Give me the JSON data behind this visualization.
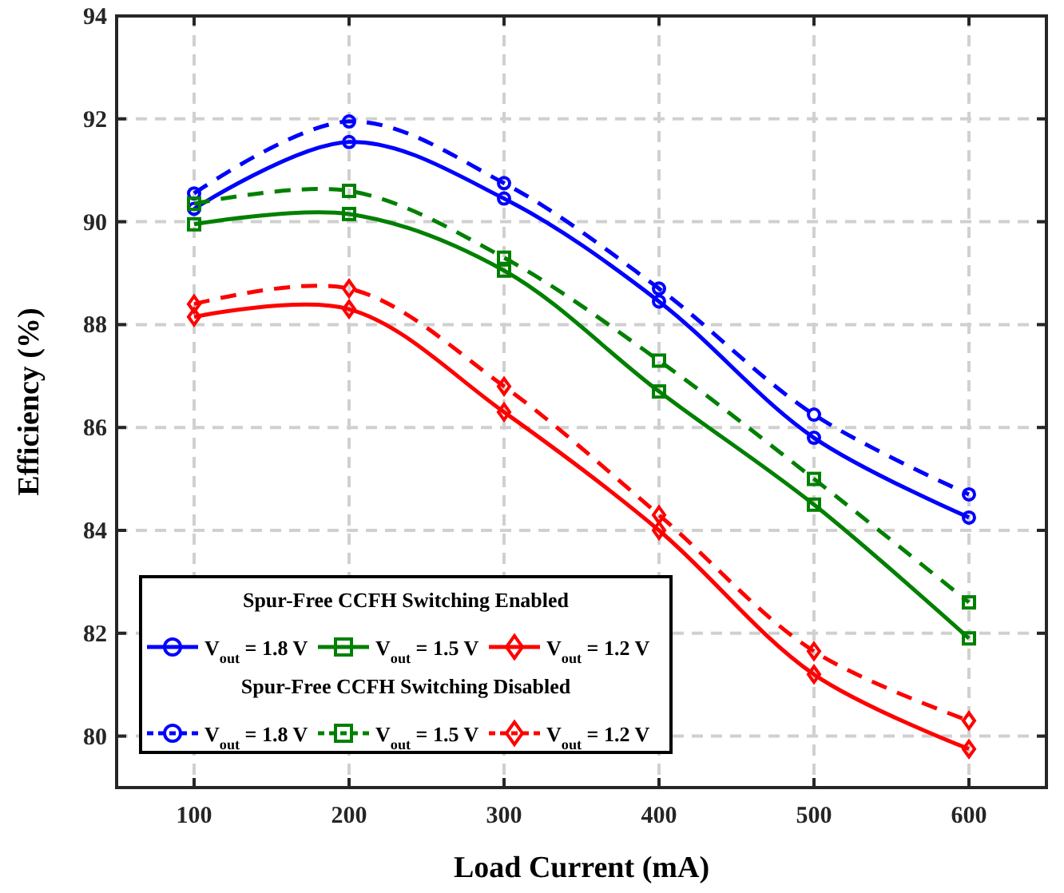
{
  "chart_data": {
    "type": "line",
    "xlabel": "Load Current (mA)",
    "ylabel": "Efficiency (%)",
    "x": [
      100,
      200,
      300,
      400,
      500,
      600
    ],
    "xlim": [
      50,
      650
    ],
    "xticks": [
      100,
      200,
      300,
      400,
      500,
      600
    ],
    "ylim": [
      79,
      94
    ],
    "yticks": [
      80,
      82,
      84,
      86,
      88,
      90,
      92,
      94
    ],
    "grid": true,
    "legend": "bottom left",
    "annotations": [
      "Spur-Free CCFH Switching Enabled",
      "Spur-Free CCFH Switching Disabled"
    ],
    "series": [
      {
        "name": "V$_{out}$ = 1.8 V",
        "color": "#0000ff",
        "line_style": "solid",
        "marker": "circle",
        "values": [
          90.25,
          91.55,
          90.45,
          88.45,
          85.8,
          84.25
        ]
      },
      {
        "name": "V$_{out}$ = 1.5 V",
        "color": "#008000",
        "line_style": "solid",
        "marker": "square",
        "values": [
          89.95,
          90.15,
          89.05,
          86.7,
          84.5,
          81.9
        ]
      },
      {
        "name": "V$_{out}$ = 1.2 V",
        "color": "#ff0000",
        "line_style": "solid",
        "marker": "diamond",
        "values": [
          88.15,
          88.3,
          86.3,
          84.0,
          81.2,
          79.75
        ]
      },
      {
        "name": "V$_{out}$ = 1.8 V",
        "color": "#0000ff",
        "line_style": "dashed",
        "marker": "circle",
        "values": [
          90.55,
          91.95,
          90.75,
          88.7,
          86.25,
          84.7
        ]
      },
      {
        "name": "V$_{out}$ = 1.5 V",
        "color": "#008000",
        "line_style": "dashed",
        "marker": "square",
        "values": [
          90.35,
          90.6,
          89.3,
          87.3,
          85.0,
          82.6
        ]
      },
      {
        "name": "V$_{out}$ = 1.2 V",
        "color": "#ff0000",
        "line_style": "dashed",
        "marker": "diamond",
        "values": [
          88.4,
          88.7,
          86.8,
          84.3,
          81.65,
          80.3
        ]
      }
    ]
  }
}
